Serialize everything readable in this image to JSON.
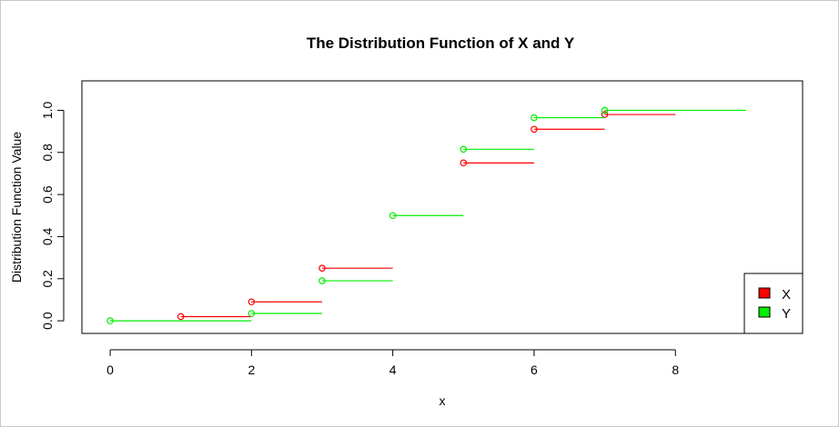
{
  "chart_data": {
    "type": "line",
    "title": "The Distribution Function of X and Y",
    "xlabel": "x",
    "ylabel": "Distribution Function Value",
    "xlim": [
      -0.4,
      9.8
    ],
    "ylim": [
      -0.06,
      1.14
    ],
    "x_ticks": [
      0,
      2,
      4,
      6,
      8
    ],
    "y_ticks": [
      0.0,
      0.2,
      0.4,
      0.6,
      0.8,
      1.0
    ],
    "x_tick_labels": [
      "0",
      "2",
      "4",
      "6",
      "8"
    ],
    "y_tick_labels": [
      "0.0",
      "0.2",
      "0.4",
      "0.6",
      "0.8",
      "1.0"
    ],
    "grid": false,
    "legend_position": "bottom-right",
    "series": [
      {
        "name": "X",
        "color": "#ff0000",
        "steps": [
          {
            "x0": 1,
            "x1": 2,
            "y": 0.02
          },
          {
            "x0": 2,
            "x1": 3,
            "y": 0.09
          },
          {
            "x0": 3,
            "x1": 4,
            "y": 0.25
          },
          {
            "x0": 5,
            "x1": 6,
            "y": 0.75
          },
          {
            "x0": 6,
            "x1": 7,
            "y": 0.91
          },
          {
            "x0": 7,
            "x1": 8,
            "y": 0.98
          }
        ]
      },
      {
        "name": "Y",
        "color": "#00ee00",
        "steps": [
          {
            "x0": 0,
            "x1": 2,
            "y": 0.0
          },
          {
            "x0": 2,
            "x1": 3,
            "y": 0.035
          },
          {
            "x0": 3,
            "x1": 4,
            "y": 0.19
          },
          {
            "x0": 4,
            "x1": 5,
            "y": 0.5
          },
          {
            "x0": 5,
            "x1": 6,
            "y": 0.815
          },
          {
            "x0": 6,
            "x1": 7,
            "y": 0.965
          },
          {
            "x0": 7,
            "x1": 9,
            "y": 1.0
          }
        ]
      }
    ]
  }
}
